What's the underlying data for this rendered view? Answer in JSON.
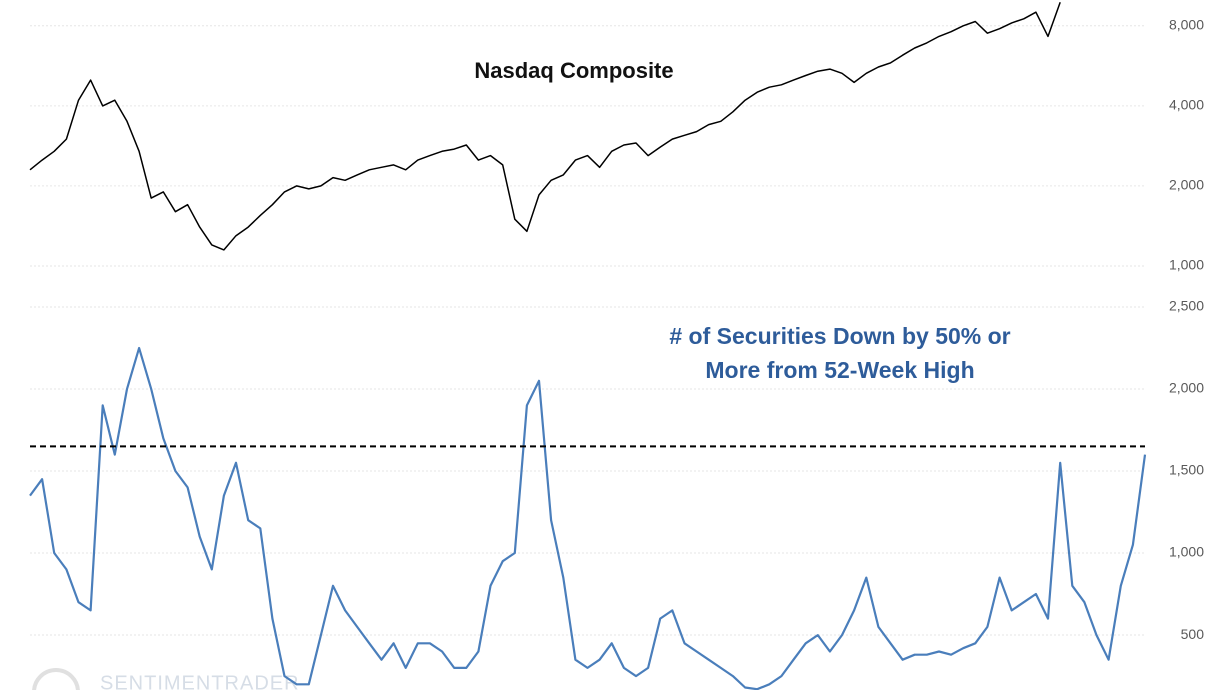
{
  "chart_data": [
    {
      "type": "line",
      "title": "Nasdaq Composite",
      "log_scale": true,
      "grid": true,
      "ylim": [
        1000,
        10000
      ],
      "yticks": [
        {
          "value": 1000,
          "label": "1,000"
        },
        {
          "value": 2000,
          "label": "2,000"
        },
        {
          "value": 4000,
          "label": "4,000"
        },
        {
          "value": 8000,
          "label": "8,000"
        }
      ],
      "series": [
        {
          "name": "Nasdaq Composite",
          "color": "#000000",
          "values": [
            2300,
            2500,
            2700,
            3000,
            4200,
            5000,
            4000,
            4200,
            3500,
            2700,
            1800,
            1900,
            1600,
            1700,
            1400,
            1200,
            1150,
            1300,
            1400,
            1550,
            1700,
            1900,
            2000,
            1950,
            2000,
            2150,
            2100,
            2200,
            2300,
            2350,
            2400,
            2300,
            2500,
            2600,
            2700,
            2750,
            2850,
            2500,
            2600,
            2400,
            1500,
            1350,
            1850,
            2100,
            2200,
            2500,
            2600,
            2350,
            2700,
            2850,
            2900,
            2600,
            2800,
            3000,
            3100,
            3200,
            3400,
            3500,
            3800,
            4200,
            4500,
            4700,
            4800,
            5000,
            5200,
            5400,
            5500,
            5300,
            4900,
            5300,
            5600,
            5800,
            6200,
            6600,
            6900,
            7300,
            7600,
            8000,
            8300,
            7500,
            7800,
            8200,
            8500,
            9000,
            7300,
            9800,
            null,
            null,
            null,
            null,
            null,
            null,
            null
          ]
        }
      ]
    },
    {
      "type": "line",
      "title": [
        "# of Securities Down by 50% or",
        "More from 52-Week High"
      ],
      "grid": true,
      "ylim": [
        165,
        2500
      ],
      "yticks": [
        500,
        {
          "value": 1000,
          "label": "1,000"
        },
        {
          "value": 1500,
          "label": "1,500"
        },
        {
          "value": 2000,
          "label": "2,000"
        },
        {
          "value": 2500,
          "label": "2,500"
        }
      ],
      "reference_line": 1650,
      "series": [
        {
          "name": "# of Securities Down by 50% or More from 52-Week High",
          "color": "#4a7ebb",
          "values": [
            1350,
            1450,
            1000,
            900,
            700,
            650,
            1900,
            1600,
            2000,
            2250,
            2000,
            1700,
            1500,
            1400,
            1100,
            900,
            1350,
            1550,
            1200,
            1150,
            600,
            250,
            200,
            200,
            500,
            800,
            650,
            550,
            450,
            350,
            450,
            300,
            450,
            450,
            400,
            300,
            300,
            400,
            800,
            950,
            1000,
            1900,
            2050,
            1200,
            850,
            350,
            300,
            350,
            450,
            300,
            250,
            300,
            600,
            650,
            450,
            400,
            350,
            300,
            250,
            180,
            170,
            200,
            250,
            350,
            450,
            500,
            400,
            500,
            650,
            850,
            550,
            450,
            350,
            380,
            380,
            400,
            380,
            420,
            450,
            550,
            850,
            650,
            700,
            750,
            600,
            1550,
            800,
            700,
            500,
            350,
            800,
            1050,
            1600
          ]
        }
      ]
    }
  ],
  "watermark": "SENTIMENTRADER"
}
